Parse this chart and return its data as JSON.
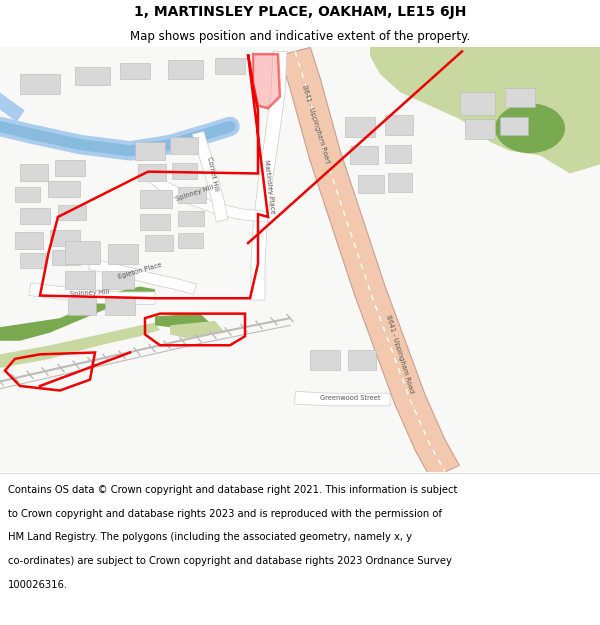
{
  "title": "1, MARTINSLEY PLACE, OAKHAM, LE15 6JH",
  "subtitle": "Map shows position and indicative extent of the property.",
  "footer_lines": [
    "Contains OS data © Crown copyright and database right 2021. This information is subject",
    "to Crown copyright and database rights 2023 and is reproduced with the permission of",
    "HM Land Registry. The polygons (including the associated geometry, namely x, y",
    "co-ordinates) are subject to Crown copyright and database rights 2023 Ordnance Survey",
    "100026316."
  ],
  "title_fontsize": 10,
  "subtitle_fontsize": 8.5,
  "footer_fontsize": 7.2,
  "map_bg": "#f8f8f6",
  "fig_bg": "#ffffff",
  "road_main_color": "#f2c9ae",
  "road_main_edge_color": "#c8a090",
  "road_white_color": "#ffffff",
  "green_light_color": "#c8d8a0",
  "green_dark_color": "#7aaa50",
  "water_color": "#aaccee",
  "building_color": "#d8d8d8",
  "building_edge_color": "#b8b8b8",
  "plot_outline_color": "#ee0000",
  "plot_linewidth": 1.8,
  "highlight_fill": "#ff9999",
  "highlight_alpha": 0.5,
  "label_color": "#555555",
  "label_fontsize": 4.8,
  "rail_color": "#aaaaaa"
}
